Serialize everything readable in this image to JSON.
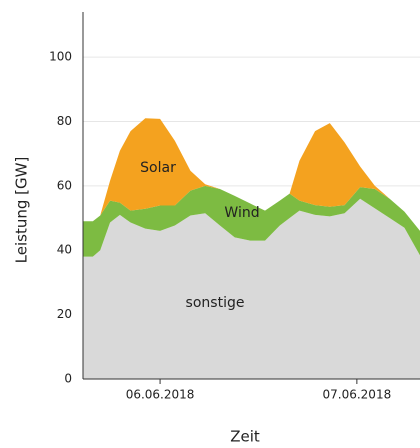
{
  "chart_data": {
    "type": "stacked_area",
    "x_label": "Zeit",
    "y_label": "Leistung [GW]",
    "x": [
      2.6,
      3.8,
      4.7,
      5.9,
      7.1,
      8.4,
      10.2,
      12,
      13.8,
      15.7,
      17.5,
      19.3,
      21.1,
      23,
      24.8,
      26.6,
      27.8,
      29,
      30.9,
      32.7,
      34.5,
      36.4,
      38.2,
      40,
      41.8,
      43.7
    ],
    "series": [
      {
        "name": "sonstige",
        "color": "#d9d9d9",
        "values": [
          38,
          38,
          40,
          48.6,
          51,
          48.6,
          46.7,
          46,
          47.7,
          50.8,
          51.5,
          47.7,
          44,
          43,
          43,
          47.7,
          50,
          52.3,
          51,
          50.5,
          51.5,
          56,
          53,
          50,
          47,
          38.4
        ]
      },
      {
        "name": "Wind",
        "color": "#7dbb42",
        "values": [
          11,
          11,
          10.8,
          6.8,
          3.8,
          3.7,
          6.2,
          7.9,
          6.2,
          7.7,
          8.5,
          11.3,
          12.9,
          11.5,
          9.3,
          7.7,
          7.6,
          3.1,
          3,
          3,
          2.5,
          3.6,
          6,
          6,
          5,
          7.6
        ]
      },
      {
        "name": "Solar",
        "color": "#f4a21f",
        "values": [
          0,
          0,
          0,
          6.2,
          16.1,
          24.7,
          28.1,
          26.9,
          20.1,
          6.2,
          0.5,
          0,
          0,
          0,
          0,
          0,
          0,
          12.4,
          23,
          26,
          19.5,
          6.4,
          1,
          0,
          0,
          0
        ]
      }
    ],
    "xlim": [
      2.6,
      43.7
    ],
    "xticks": [
      {
        "value": 12,
        "label": "06.06.2018"
      },
      {
        "value": 36,
        "label": "07.06.2018"
      }
    ],
    "ylim": [
      0,
      114
    ],
    "yticks": [
      0,
      20,
      40,
      60,
      80,
      100
    ],
    "grid": true
  }
}
